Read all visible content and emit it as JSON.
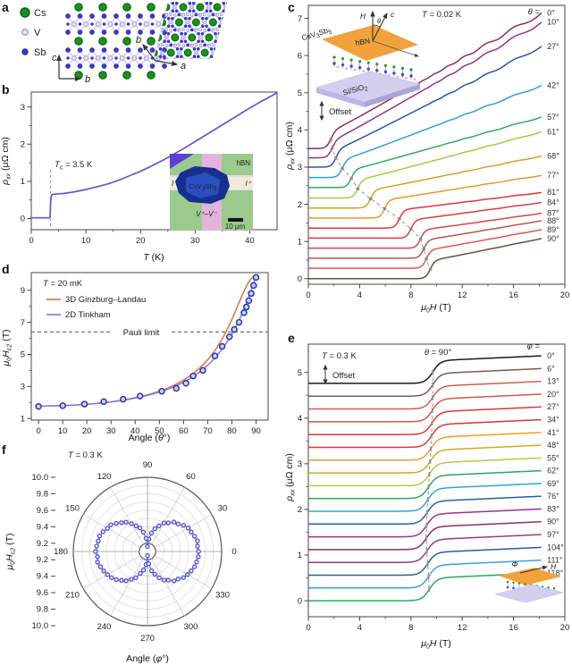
{
  "panels": {
    "a": "a",
    "b": "b",
    "c": "c",
    "d": "d",
    "e": "e",
    "f": "f"
  },
  "labels": {
    "rho": "ρ",
    "xx": "xx",
    "rho_units": " (μΩ cm)",
    "mu": "μ",
    "zero": "0",
    "H_T": "H (T)",
    "Hsym": "H",
    "c2": "c2",
    "T_unit": " (T)",
    "T": "T",
    "T_K_rest": " (K)",
    "tc_sub": "c",
    "tc_rest": " = 3.5 K",
    "t002_rest": " = 0.02 K",
    "t03_rest": " = 0.3 K",
    "t20_rest": " = 20 mK",
    "theta": "θ",
    "theta_eq_rest": " =",
    "theta90_rest": " = 90°",
    "phi": "φ",
    "phi_eq_rest": " =",
    "phi_cap": "Φ",
    "angle_open": "Angle (",
    "deg_close": "°)",
    "offset": "Offset",
    "pauli": "Pauli limit",
    "hbn": "hBN",
    "csv": "CsV",
    "three": "3",
    "sbsym": "Sb",
    "five": "5",
    "sisio": "Si/SiO",
    "two": "2",
    "c_axis": "c",
    "b_axis": "b",
    "a_axis": "a",
    "i_minus": "I⁻",
    "i_plus": "I⁺",
    "v_pair": "V⁺–V⁻",
    "scale": "10 μm"
  },
  "panel_a": {
    "legend": [
      {
        "label": "Cs"
      },
      {
        "label": "V"
      },
      {
        "label": "Sb"
      }
    ],
    "colors": {
      "cs": "#17941c",
      "cs_stroke": "#0a5c10",
      "v": "#e8e5fa",
      "v_stroke": "#9a90d8",
      "sb": "#3a3ac0",
      "bond": "#b9b2e6"
    }
  },
  "chart_data": [
    {
      "id": "b",
      "type": "line",
      "title": "",
      "xlabel": "T (K)",
      "ylabel": "ρxx (μΩ cm)",
      "xlim": [
        0,
        45
      ],
      "ylim": [
        -0.3,
        3.4
      ],
      "xticks": [
        0,
        10,
        20,
        30,
        40
      ],
      "xminors": [
        5,
        15,
        25,
        35
      ],
      "yticks": [
        0,
        1,
        2,
        3
      ],
      "yminors": [
        0.5,
        1.5,
        2.5
      ],
      "annotation": "Tc = 3.5 K",
      "tc": 3.5,
      "color": "#6e52d2",
      "x": [
        0,
        1,
        2,
        3,
        3.3,
        3.45,
        3.55,
        3.7,
        4,
        5,
        6,
        8,
        10,
        12,
        14,
        16,
        18,
        20,
        22,
        24,
        26,
        28,
        30,
        32,
        34,
        36,
        38,
        40,
        42,
        44,
        45
      ],
      "y": [
        0.02,
        0.02,
        0.02,
        0.02,
        0.02,
        0.05,
        0.45,
        0.63,
        0.655,
        0.665,
        0.675,
        0.72,
        0.78,
        0.85,
        0.93,
        1.03,
        1.15,
        1.27,
        1.41,
        1.56,
        1.72,
        1.89,
        2.07,
        2.25,
        2.43,
        2.61,
        2.79,
        2.97,
        3.14,
        3.3,
        3.38
      ]
    },
    {
      "id": "c",
      "type": "offset_stack",
      "temperature": "T = 0.02 K",
      "xlabel": "μ0H (T)",
      "ylabel": "ρxx (μΩ cm)",
      "offset_note": "Offset",
      "xlim": [
        0,
        20
      ],
      "ylim": [
        -0.15,
        7.35
      ],
      "xticks": [
        0,
        4,
        8,
        12,
        16,
        20
      ],
      "xminors": [
        2,
        6,
        10,
        14,
        18
      ],
      "yticks": [
        0,
        1,
        2,
        3,
        4,
        5,
        6,
        7
      ],
      "step": 0.5,
      "x_end": 18.2,
      "series": [
        {
          "label": "0°",
          "color": "#8e2f52",
          "base": 3.5,
          "hc2": 1.75,
          "end": 7.15,
          "wiggle": 0.05
        },
        {
          "label": "10°",
          "color": "#993088",
          "base": 3.25,
          "hc2": 1.85,
          "end": 6.9,
          "wiggle": 0.04
        },
        {
          "label": "27°",
          "color": "#2456a8",
          "base": 3.0,
          "hc2": 2.15,
          "end": 6.25,
          "wiggle": 0.03
        },
        {
          "label": "42°",
          "color": "#2e9fd6",
          "base": 2.72,
          "hc2": 2.65,
          "end": 5.2,
          "wiggle": 0.02
        },
        {
          "label": "57°",
          "color": "#2faa5e",
          "base": 2.45,
          "hc2": 3.35,
          "end": 4.35,
          "wiggle": 0.012
        },
        {
          "label": "61°",
          "color": "#a6c93c",
          "base": 2.17,
          "hc2": 3.85,
          "end": 3.95,
          "wiggle": 0.01
        },
        {
          "label": "68°",
          "color": "#d1a21c",
          "base": 1.9,
          "hc2": 4.85,
          "end": 3.3,
          "wiggle": 0.008
        },
        {
          "label": "77°",
          "color": "#f0932c",
          "base": 1.63,
          "hc2": 5.95,
          "end": 2.78,
          "wiggle": 0.006
        },
        {
          "label": "81°",
          "color": "#e23535",
          "base": 1.36,
          "hc2": 7.1,
          "end": 2.32,
          "wiggle": 0.005
        },
        {
          "label": "84°",
          "color": "#e03a3a",
          "base": 1.09,
          "hc2": 8.0,
          "end": 2.05,
          "wiggle": 0.004
        },
        {
          "label": "87°",
          "color": "#d84545",
          "base": 0.82,
          "hc2": 8.75,
          "end": 1.76,
          "wiggle": 0.003
        },
        {
          "label": "88°",
          "color": "#b5574a",
          "base": 0.55,
          "hc2": 9.0,
          "end": 1.56,
          "wiggle": 0.003
        },
        {
          "label": "89°",
          "color": "#e05545",
          "base": 0.28,
          "hc2": 9.2,
          "end": 1.32,
          "wiggle": 0.003
        },
        {
          "label": "90°",
          "color": "#6f4a3a",
          "base": 0.0,
          "hc2": 9.5,
          "end": 1.08,
          "wiggle": 0.002
        }
      ]
    },
    {
      "id": "d",
      "type": "scatter_fit",
      "temperature": "T = 20 mK",
      "xlabel": "Angle (θ°)",
      "ylabel": "μ0Hc2 (T)",
      "xlim": [
        -3,
        95
      ],
      "ylim": [
        0.9,
        10.1
      ],
      "xticks": [
        0,
        10,
        20,
        30,
        40,
        50,
        60,
        70,
        80,
        90
      ],
      "yticks": [
        1,
        3,
        5,
        7,
        9
      ],
      "yminors": [
        2,
        4,
        6,
        8
      ],
      "pauli_limit": 6.4,
      "pauli_label": "Pauli limit",
      "legend": [
        {
          "label": "3D Ginzburg–Landau",
          "color": "#e0703a"
        },
        {
          "label": "2D Tinkham",
          "color": "#8278e0"
        }
      ],
      "hc2_perp": 1.78,
      "hc2_par": 9.9,
      "point_color": "#2636b0",
      "points_x": [
        0,
        10,
        19,
        27,
        35,
        42,
        51,
        57,
        61,
        64,
        68,
        73,
        76,
        79,
        81,
        83,
        85,
        86,
        87,
        88,
        89,
        90
      ],
      "points_y": [
        1.75,
        1.8,
        1.9,
        2.05,
        2.2,
        2.4,
        2.7,
        2.88,
        3.2,
        3.65,
        4.0,
        4.9,
        5.5,
        6.1,
        6.55,
        7.0,
        7.6,
        7.95,
        8.35,
        8.8,
        9.3,
        9.8
      ]
    },
    {
      "id": "e",
      "type": "offset_stack",
      "temperature": "T = 0.3 K",
      "theta_fixed": "θ = 90°",
      "xlabel": "μ0H (T)",
      "ylabel": "ρxx (μΩ cm)",
      "offset_note": "Offset",
      "xlim": [
        0,
        20
      ],
      "ylim": [
        -0.35,
        5.62
      ],
      "xticks": [
        0,
        4,
        8,
        12,
        16,
        20
      ],
      "xminors": [
        2,
        6,
        10,
        14,
        18
      ],
      "yticks": [
        0,
        1,
        2,
        3,
        4,
        5
      ],
      "step": 0.5,
      "x_end": 18.2,
      "series": [
        {
          "label": "0°",
          "color": "#1a1a1a",
          "base": 4.76,
          "hc2": 9.7
        },
        {
          "label": "6°",
          "color": "#7d5a50",
          "base": 4.48,
          "hc2": 9.7
        },
        {
          "label": "13°",
          "color": "#cf5f4c",
          "base": 4.2,
          "hc2": 9.69
        },
        {
          "label": "20°",
          "color": "#db5345",
          "base": 3.92,
          "hc2": 9.67
        },
        {
          "label": "27°",
          "color": "#e23535",
          "base": 3.64,
          "hc2": 9.64
        },
        {
          "label": "34°",
          "color": "#e23535",
          "base": 3.36,
          "hc2": 9.6
        },
        {
          "label": "41°",
          "color": "#f49a2a",
          "base": 3.08,
          "hc2": 9.55
        },
        {
          "label": "48°",
          "color": "#cfae1f",
          "base": 2.8,
          "hc2": 9.49
        },
        {
          "label": "55°",
          "color": "#b5ce3e",
          "base": 2.52,
          "hc2": 9.43
        },
        {
          "label": "62°",
          "color": "#2aa866",
          "base": 2.24,
          "hc2": 9.37
        },
        {
          "label": "69°",
          "color": "#2ba8dc",
          "base": 1.96,
          "hc2": 9.31
        },
        {
          "label": "76°",
          "color": "#2560a8",
          "base": 1.68,
          "hc2": 9.26
        },
        {
          "label": "83°",
          "color": "#a0308f",
          "base": 1.4,
          "hc2": 9.22
        },
        {
          "label": "90°",
          "color": "#8c2f6f",
          "base": 1.12,
          "hc2": 9.2
        },
        {
          "label": "97°",
          "color": "#96398c",
          "base": 0.84,
          "hc2": 9.24
        },
        {
          "label": "104°",
          "color": "#2560a8",
          "base": 0.56,
          "hc2": 9.3
        },
        {
          "label": "111°",
          "color": "#35a5dc",
          "base": 0.28,
          "hc2": 9.37
        },
        {
          "label": "118°",
          "color": "#2aa85f",
          "base": 0.0,
          "hc2": 9.43
        }
      ]
    },
    {
      "id": "f",
      "type": "polar",
      "temperature": "T = 0.3 K",
      "xlabel": "Angle (φ°)",
      "ylabel": "μ0Hc2 (T)",
      "r_center": 9.1,
      "r_outer": 10.0,
      "r_ticks": [
        10.0,
        9.8,
        9.6,
        9.4,
        9.2
      ],
      "angle_labels": [
        0,
        30,
        60,
        90,
        120,
        150,
        180,
        210,
        240,
        270,
        300,
        330
      ],
      "line_color": "#6a6ad4",
      "marker_stroke": "#4a4cc8",
      "marker_fill": "#e4e4fa",
      "angles_deg": [
        0,
        6,
        12,
        18,
        24,
        30,
        36,
        42,
        48,
        54,
        60,
        66,
        72,
        78,
        84,
        90,
        96,
        102,
        108,
        114,
        120,
        126,
        132,
        138,
        144,
        150,
        156,
        162,
        168,
        174,
        180,
        186,
        192,
        198,
        204,
        210,
        216,
        222,
        228,
        234,
        240,
        246,
        252,
        258,
        264,
        270,
        276,
        282,
        288,
        294,
        300,
        306,
        312,
        318,
        324,
        330,
        336,
        342,
        348,
        354
      ],
      "r": [
        9.72,
        9.71,
        9.72,
        9.7,
        9.68,
        9.67,
        9.64,
        9.6,
        9.58,
        9.53,
        9.5,
        9.44,
        9.39,
        9.33,
        9.25,
        9.16,
        9.26,
        9.34,
        9.4,
        9.44,
        9.49,
        9.54,
        9.57,
        9.61,
        9.65,
        9.66,
        9.69,
        9.71,
        9.71,
        9.72,
        9.73,
        9.71,
        9.72,
        9.7,
        9.68,
        9.66,
        9.64,
        9.61,
        9.57,
        9.54,
        9.49,
        9.45,
        9.38,
        9.33,
        9.26,
        9.15,
        9.25,
        9.34,
        9.39,
        9.45,
        9.5,
        9.53,
        9.58,
        9.6,
        9.64,
        9.66,
        9.68,
        9.7,
        9.71,
        9.72
      ]
    }
  ]
}
